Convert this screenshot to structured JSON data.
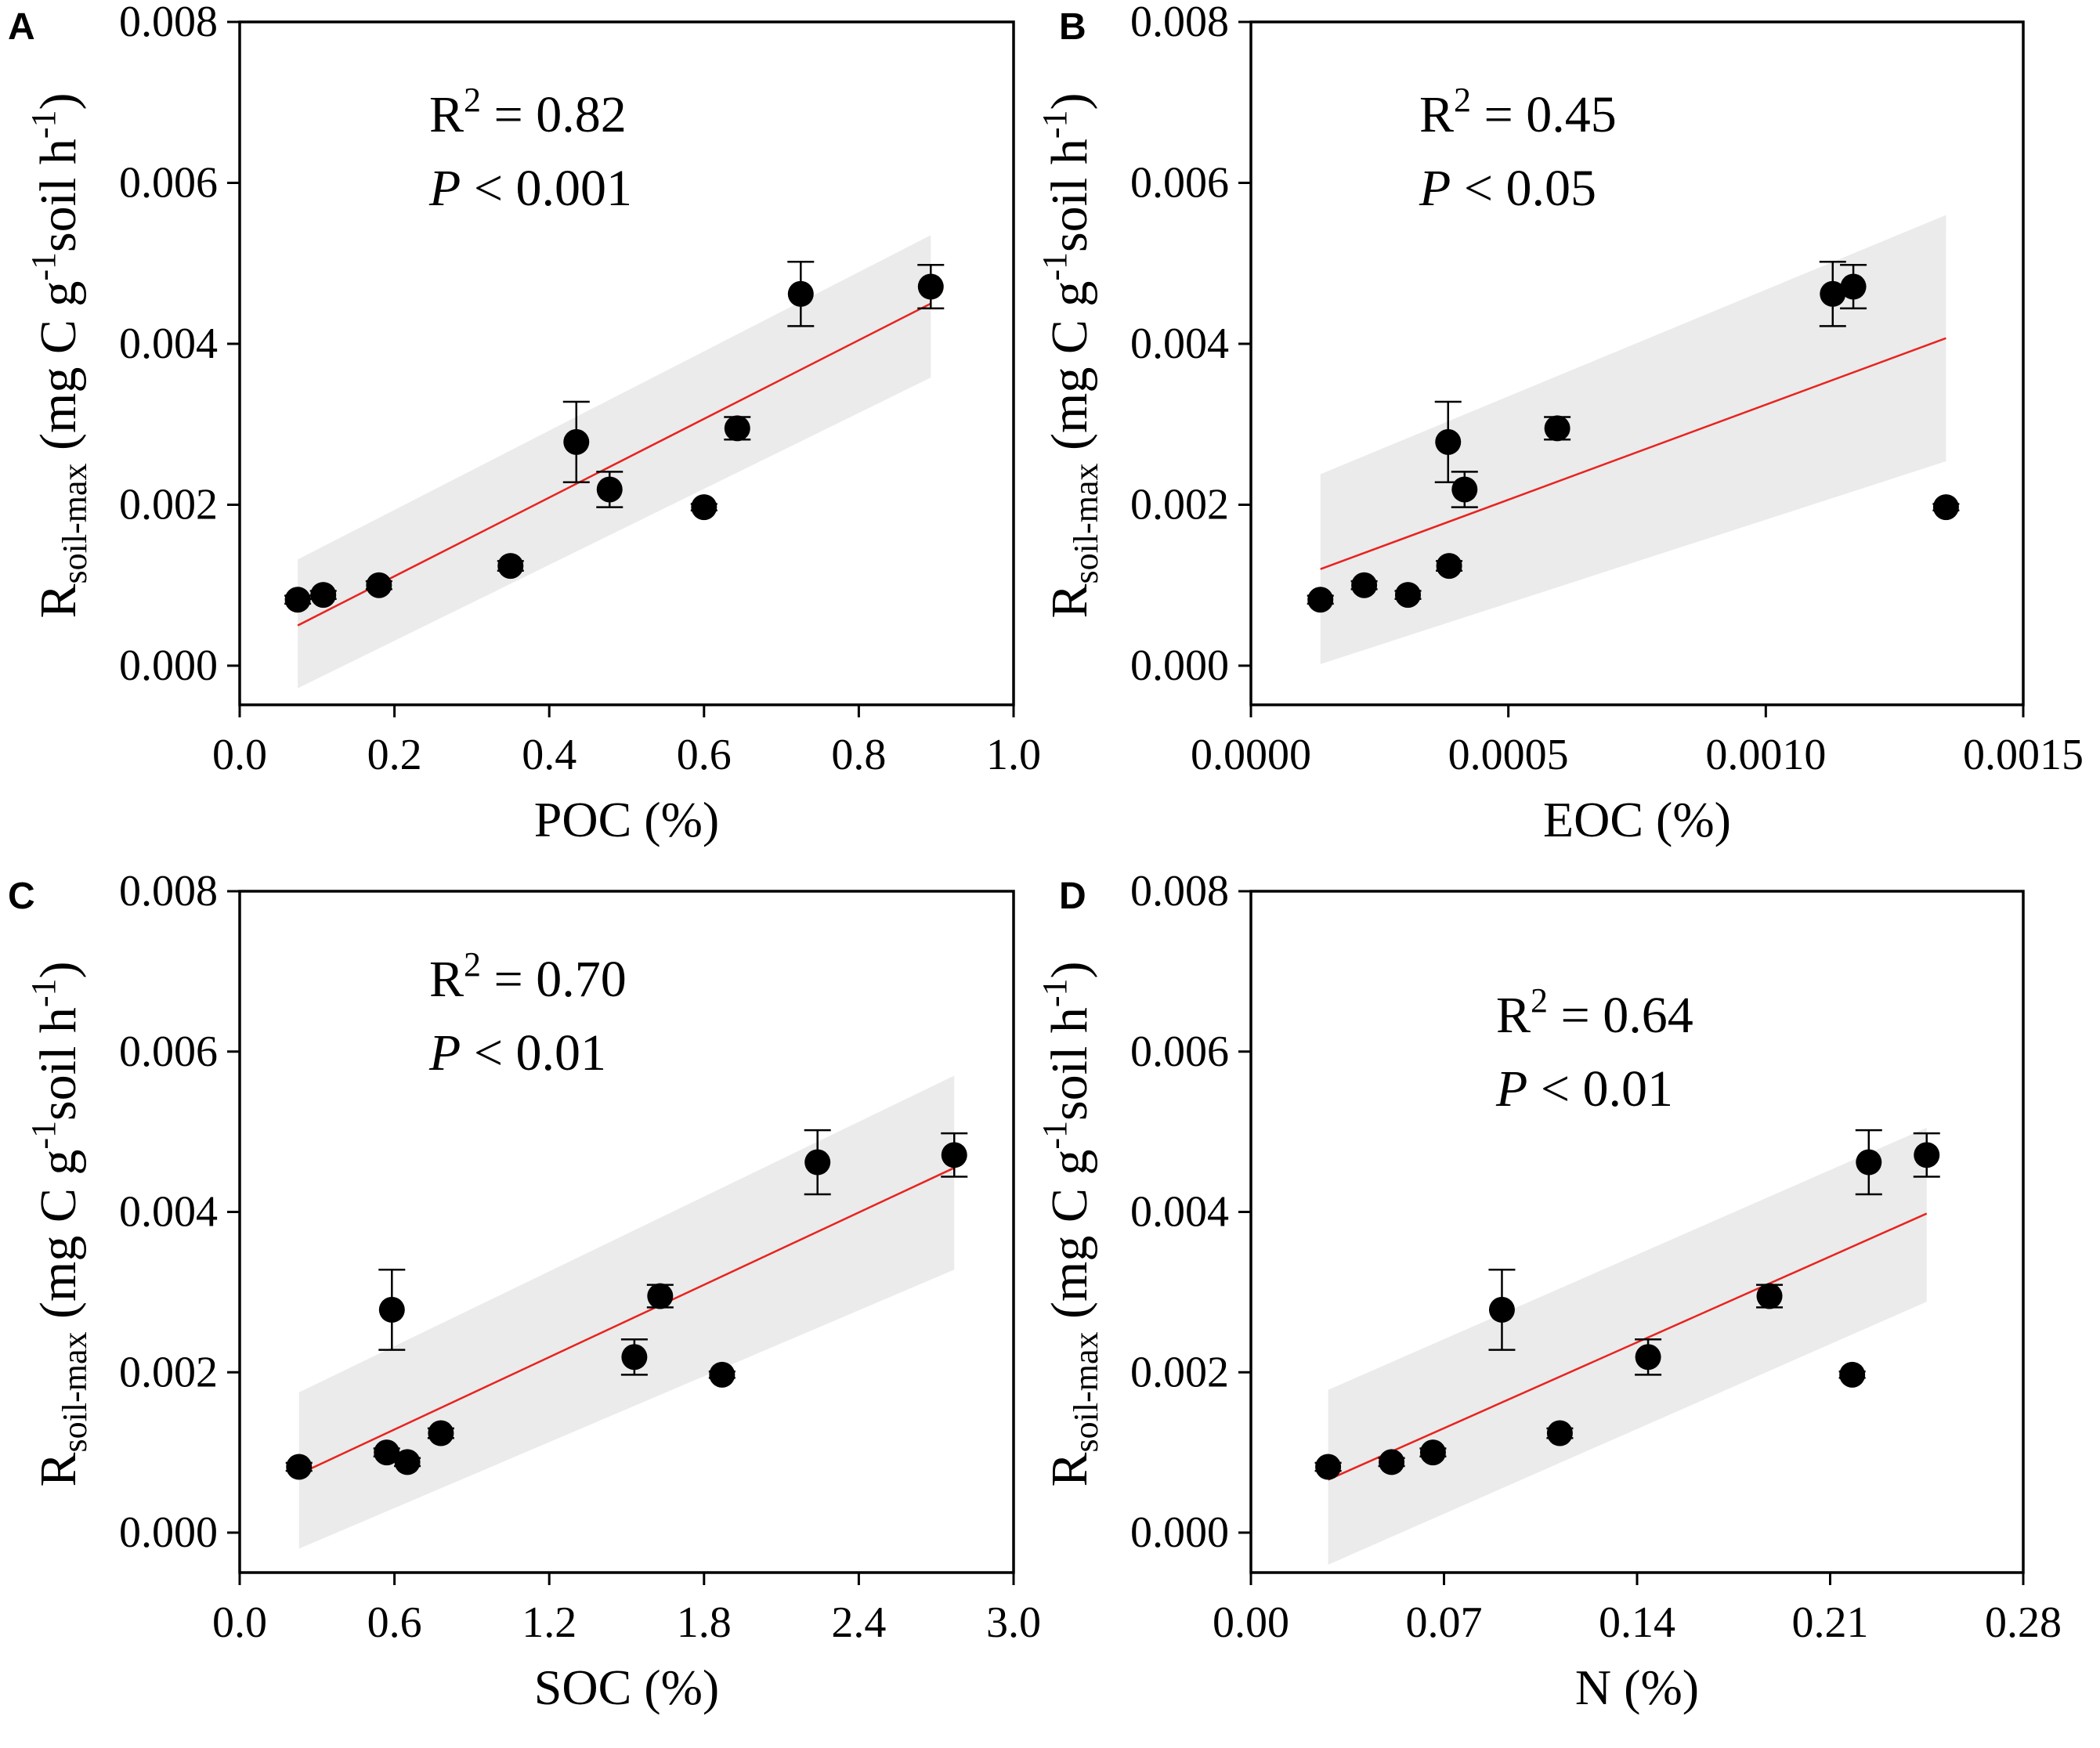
{
  "figure": {
    "panels_count": 4
  },
  "chart_data": [
    {
      "panel_label": "A",
      "type": "scatter",
      "title": "",
      "xlabel": "POC (%)",
      "ylabel": {
        "main": "R",
        "subscript": "soil-max",
        "units": "(mg C g-1 soil h-1)"
      },
      "xlim": [
        0.0,
        1.0
      ],
      "ylim": [
        -0.0005,
        0.008
      ],
      "xticks": [
        0.0,
        0.2,
        0.4,
        0.6,
        0.8,
        1.0
      ],
      "xtick_labels": [
        "0.0",
        "0.2",
        "0.4",
        "0.6",
        "0.8",
        "1.0"
      ],
      "yticks": [
        0.0,
        0.002,
        0.004,
        0.006,
        0.008
      ],
      "ytick_labels": [
        "0.000",
        "0.002",
        "0.004",
        "0.006",
        "0.008"
      ],
      "annotation": {
        "r2": "R2 = 0.82",
        "r2_value": "= 0.82",
        "p_value": "< 0.001"
      },
      "points": [
        {
          "x": 0.075,
          "y": 0.00082,
          "err": 5e-05
        },
        {
          "x": 0.108,
          "y": 0.00088,
          "err": 5e-05
        },
        {
          "x": 0.18,
          "y": 0.001,
          "err": 5e-05
        },
        {
          "x": 0.35,
          "y": 0.00124,
          "err": 6e-05
        },
        {
          "x": 0.435,
          "y": 0.00278,
          "err": 0.0005
        },
        {
          "x": 0.478,
          "y": 0.00219,
          "err": 0.00022
        },
        {
          "x": 0.6,
          "y": 0.00197,
          "err": 4e-05
        },
        {
          "x": 0.643,
          "y": 0.00295,
          "err": 0.00014
        },
        {
          "x": 0.725,
          "y": 0.00462,
          "err": 0.0004
        },
        {
          "x": 0.893,
          "y": 0.00471,
          "err": 0.00027
        }
      ],
      "fit": {
        "x": [
          0.075,
          0.893
        ],
        "y": [
          0.0005,
          0.0045
        ]
      },
      "band": {
        "x": [
          0.075,
          0.893
        ],
        "upper": [
          0.00132,
          0.00535
        ],
        "lower": [
          -0.00028,
          0.00358
        ]
      }
    },
    {
      "panel_label": "B",
      "type": "scatter",
      "title": "",
      "xlabel": "EOC (%)",
      "ylabel": {
        "main": "R",
        "subscript": "soil-max",
        "units": "(mg C g-1 soil h-1)"
      },
      "xlim": [
        0.0,
        0.0015
      ],
      "ylim": [
        -0.0005,
        0.008
      ],
      "xticks": [
        0.0,
        0.0005,
        0.001,
        0.0015
      ],
      "xtick_labels": [
        "0.0000",
        "0.0005",
        "0.0010",
        "0.0015"
      ],
      "yticks": [
        0.0,
        0.002,
        0.004,
        0.006,
        0.008
      ],
      "ytick_labels": [
        "0.000",
        "0.002",
        "0.004",
        "0.006",
        "0.008"
      ],
      "annotation": {
        "r2": "R2 = 0.45",
        "r2_value": "= 0.45",
        "p_value": "< 0.05"
      },
      "points": [
        {
          "x": 0.000135,
          "y": 0.00082,
          "err": 5e-05
        },
        {
          "x": 0.00022,
          "y": 0.001,
          "err": 5e-05
        },
        {
          "x": 0.000305,
          "y": 0.00088,
          "err": 5e-05
        },
        {
          "x": 0.000385,
          "y": 0.00124,
          "err": 6e-05
        },
        {
          "x": 0.000383,
          "y": 0.00278,
          "err": 0.0005
        },
        {
          "x": 0.000415,
          "y": 0.00219,
          "err": 0.00022
        },
        {
          "x": 0.000595,
          "y": 0.00295,
          "err": 0.00014
        },
        {
          "x": 0.00113,
          "y": 0.00462,
          "err": 0.0004
        },
        {
          "x": 0.00117,
          "y": 0.00471,
          "err": 0.00027
        },
        {
          "x": 0.00135,
          "y": 0.00197,
          "err": 4e-05
        }
      ],
      "fit": {
        "x": [
          0.000135,
          0.00135
        ],
        "y": [
          0.0012,
          0.00407
        ]
      },
      "band": {
        "x": [
          0.000135,
          0.00135
        ],
        "upper": [
          0.00238,
          0.0056
        ],
        "lower": [
          2e-05,
          0.00254
        ]
      }
    },
    {
      "panel_label": "C",
      "type": "scatter",
      "title": "",
      "xlabel": "SOC (%)",
      "ylabel": {
        "main": "R",
        "subscript": "soil-max",
        "units": "(mg C g-1 soil h-1)"
      },
      "xlim": [
        0.0,
        3.0
      ],
      "ylim": [
        -0.0005,
        0.008
      ],
      "xticks": [
        0.0,
        0.6,
        1.2,
        1.8,
        2.4,
        3.0
      ],
      "xtick_labels": [
        "0.0",
        "0.6",
        "1.2",
        "1.8",
        "2.4",
        "3.0"
      ],
      "yticks": [
        0.0,
        0.002,
        0.004,
        0.006,
        0.008
      ],
      "ytick_labels": [
        "0.000",
        "0.002",
        "0.004",
        "0.006",
        "0.008"
      ],
      "annotation": {
        "r2": "R2 = 0.70",
        "r2_value": "= 0.70",
        "p_value": "< 0.01"
      },
      "points": [
        {
          "x": 0.23,
          "y": 0.00082,
          "err": 5e-05
        },
        {
          "x": 0.57,
          "y": 0.001,
          "err": 5e-05
        },
        {
          "x": 0.65,
          "y": 0.00088,
          "err": 5e-05
        },
        {
          "x": 0.78,
          "y": 0.00124,
          "err": 6e-05
        },
        {
          "x": 0.59,
          "y": 0.00278,
          "err": 0.0005
        },
        {
          "x": 1.53,
          "y": 0.00219,
          "err": 0.00022
        },
        {
          "x": 1.63,
          "y": 0.00295,
          "err": 0.00014
        },
        {
          "x": 1.87,
          "y": 0.00197,
          "err": 4e-05
        },
        {
          "x": 2.24,
          "y": 0.00462,
          "err": 0.0004
        },
        {
          "x": 2.77,
          "y": 0.00471,
          "err": 0.00027
        }
      ],
      "fit": {
        "x": [
          0.23,
          2.77
        ],
        "y": [
          0.00073,
          0.00455
        ]
      },
      "band": {
        "x": [
          0.23,
          2.77
        ],
        "upper": [
          0.00175,
          0.0057
        ],
        "lower": [
          -0.0002,
          0.00328
        ]
      }
    },
    {
      "panel_label": "D",
      "type": "scatter",
      "title": "",
      "xlabel": "N (%)",
      "ylabel": {
        "main": "R",
        "subscript": "soil-max",
        "units": "(mg C g-1 soil h-1)"
      },
      "xlim": [
        0.0,
        0.28
      ],
      "ylim": [
        -0.0005,
        0.008
      ],
      "xticks": [
        0.0,
        0.07,
        0.14,
        0.21,
        0.28
      ],
      "xtick_labels": [
        "0.00",
        "0.07",
        "0.14",
        "0.21",
        "0.28"
      ],
      "yticks": [
        0.0,
        0.002,
        0.004,
        0.006,
        0.008
      ],
      "ytick_labels": [
        "0.000",
        "0.002",
        "0.004",
        "0.006",
        "0.008"
      ],
      "annotation": {
        "r2": "R2 = 0.64",
        "r2_value": "= 0.64",
        "p_value": "< 0.01"
      },
      "points": [
        {
          "x": 0.028,
          "y": 0.00082,
          "err": 5e-05
        },
        {
          "x": 0.051,
          "y": 0.00088,
          "err": 5e-05
        },
        {
          "x": 0.066,
          "y": 0.001,
          "err": 5e-05
        },
        {
          "x": 0.091,
          "y": 0.00278,
          "err": 0.0005
        },
        {
          "x": 0.112,
          "y": 0.00124,
          "err": 6e-05
        },
        {
          "x": 0.144,
          "y": 0.00219,
          "err": 0.00022
        },
        {
          "x": 0.188,
          "y": 0.00295,
          "err": 0.00014
        },
        {
          "x": 0.218,
          "y": 0.00197,
          "err": 4e-05
        },
        {
          "x": 0.224,
          "y": 0.00462,
          "err": 0.0004
        },
        {
          "x": 0.245,
          "y": 0.00471,
          "err": 0.00027
        }
      ],
      "fit": {
        "x": [
          0.028,
          0.245
        ],
        "y": [
          0.00066,
          0.00398
        ]
      },
      "band": {
        "x": [
          0.028,
          0.245
        ],
        "upper": [
          0.00178,
          0.00505
        ],
        "lower": [
          -0.0004,
          0.00288
        ]
      }
    }
  ],
  "colors": {
    "background": "#ffffff",
    "axis": "#000000",
    "point": "#000000",
    "fit_line": "#e8231f",
    "confidence_band": "#ebebeb"
  }
}
